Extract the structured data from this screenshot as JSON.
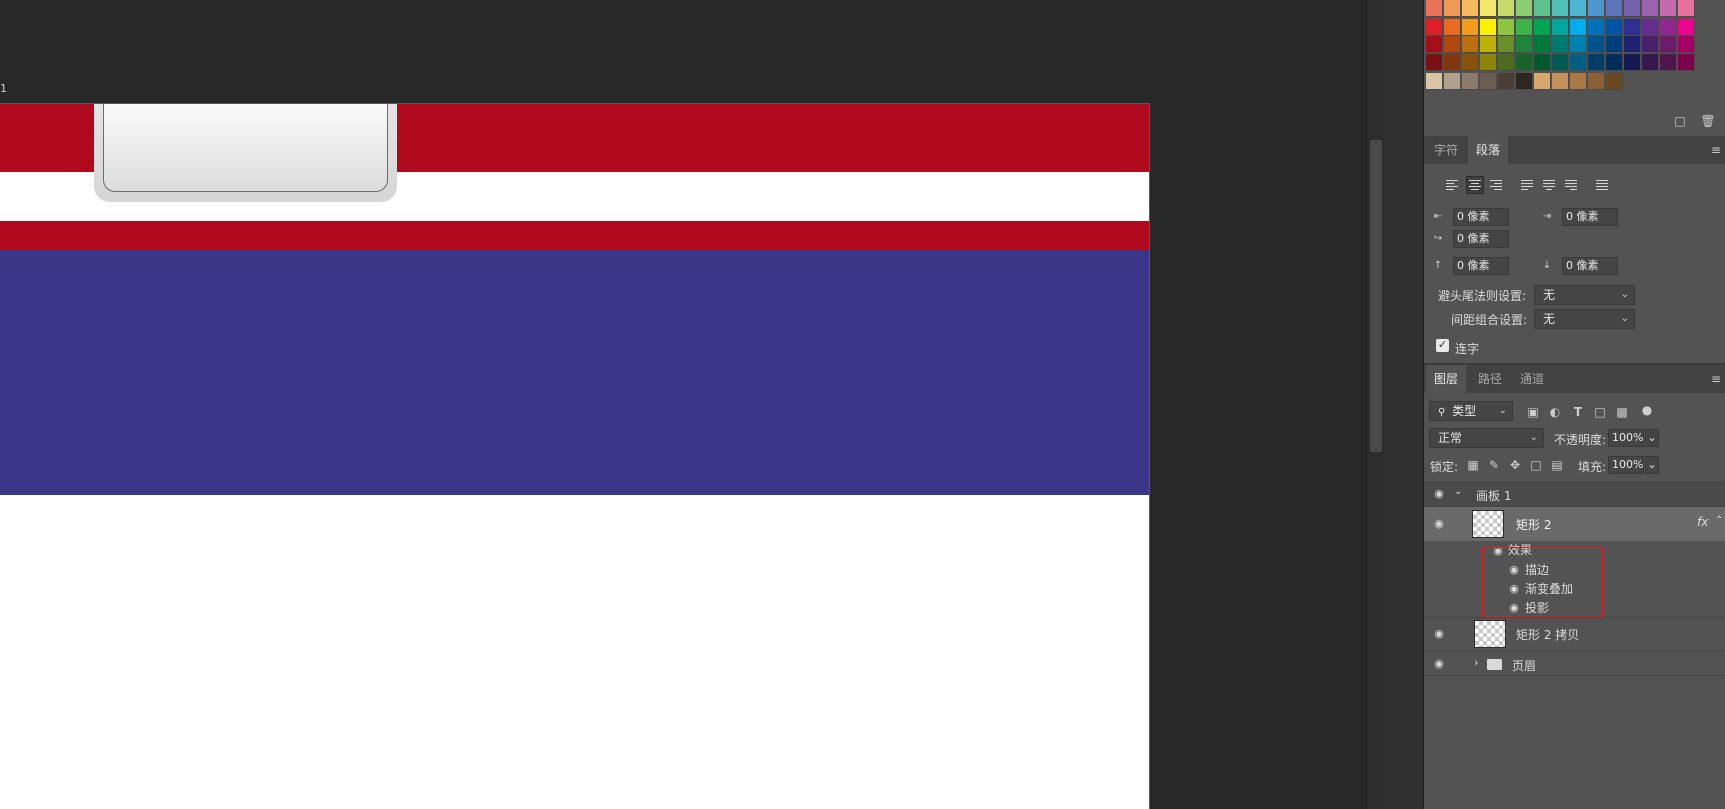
{
  "canvas": {
    "artboard_label": "1",
    "bands": [
      {
        "name": "top-red-band",
        "color": "#b0081c"
      },
      {
        "name": "white-band",
        "color": "#ffffff"
      },
      {
        "name": "bottom-red-band",
        "color": "#b0081c"
      },
      {
        "name": "blue-band",
        "color": "#3b3688"
      }
    ]
  },
  "swatches": {
    "rows": [
      [
        "#e8735a",
        "#f09a5a",
        "#f4b85e",
        "#f6e56c",
        "#c6db6e",
        "#8ccc73",
        "#5ec08a",
        "#51bfb3",
        "#4fb7d4",
        "#4f96cf",
        "#5e74bd",
        "#7861ad",
        "#9b63ad",
        "#c46bae",
        "#e7719b"
      ],
      [
        "#e01e26",
        "#ea6a1f",
        "#f29c1d",
        "#fff100",
        "#8cc63e",
        "#3cb449",
        "#00a651",
        "#00a99d",
        "#00aeef",
        "#0072bc",
        "#0054a6",
        "#2e3192",
        "#662d91",
        "#92278f",
        "#ec008c"
      ],
      [
        "#a4101a",
        "#b1480f",
        "#bb6f0f",
        "#bdb20a",
        "#69902a",
        "#20853a",
        "#00793d",
        "#007b72",
        "#0082b0",
        "#00548b",
        "#003d7b",
        "#1e2370",
        "#4b1f6c",
        "#6d1c69",
        "#a50066"
      ],
      [
        "#7a0f14",
        "#83350b",
        "#8a520b",
        "#8c8507",
        "#4e6b20",
        "#18642b",
        "#005a2d",
        "#005c55",
        "#006083",
        "#003e67",
        "#002d5b",
        "#151a53",
        "#381750",
        "#51154e",
        "#7c004c"
      ],
      [
        "#d9c4a4",
        "#b1a08a",
        "#8c7b6c",
        "#6b5d52",
        "#4a3e37",
        "#2d2722",
        "#d7a86e",
        "#c4925a",
        "#a97a46",
        "#8a6034",
        "#6a4822"
      ]
    ]
  },
  "character_panel": {
    "tabs": [
      "字符",
      "段落"
    ],
    "active_tab": "段落",
    "indent_left": "0 像素",
    "indent_right": "0 像素",
    "indent_first": "0 像素",
    "space_before": "0 像素",
    "space_after": "0 像素",
    "kinsoku_label": "避头尾法则设置:",
    "kinsoku_value": "无",
    "mojikumi_label": "间距组合设置:",
    "mojikumi_value": "无",
    "hyphenate_label": "连字",
    "hyphenate_checked": true
  },
  "layers_panel": {
    "tabs": [
      "图层",
      "路径",
      "通道"
    ],
    "active_tab": "图层",
    "filter_kind": "类型",
    "blend_mode": "正常",
    "opacity_label": "不透明度:",
    "opacity_value": "100%",
    "lock_label": "锁定:",
    "fill_label": "填充:",
    "fill_value": "100%",
    "artboard_name": "画板 1",
    "layer_selected": "矩形 2",
    "fx_label": "fx",
    "effects_label": "效果",
    "effects": [
      "描边",
      "渐变叠加",
      "投影"
    ],
    "layer_copy": "矩形 2 拷贝",
    "group_name": "页眉"
  }
}
